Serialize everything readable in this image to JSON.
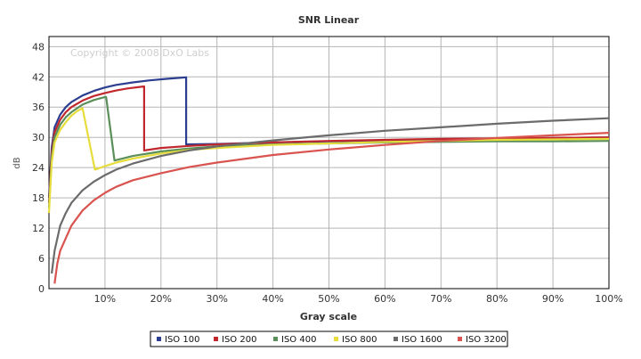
{
  "chart_data": {
    "type": "line",
    "title": "SNR Linear",
    "xlabel": "Gray scale",
    "ylabel": "dB",
    "watermark": "Copyright © 2008 DxO Labs",
    "xlim": [
      0,
      100
    ],
    "ylim": [
      0,
      50
    ],
    "yticks": [
      0,
      6,
      12,
      18,
      24,
      30,
      36,
      42,
      48
    ],
    "ytick_labels": [
      "0",
      "6",
      "12",
      "18",
      "24",
      "30",
      "36",
      "42",
      "48"
    ],
    "xticks": [
      10,
      20,
      30,
      40,
      50,
      60,
      70,
      80,
      90,
      100
    ],
    "xtick_labels": [
      "10%",
      "20%",
      "30%",
      "40%",
      "50%",
      "60%",
      "70%",
      "80%",
      "90%",
      "100%"
    ],
    "grid": true,
    "legend_position": "bottom",
    "series": [
      {
        "name": "ISO 100",
        "color": "#2c3e8f",
        "points": [
          [
            0,
            18
          ],
          [
            0.5,
            28
          ],
          [
            1,
            32
          ],
          [
            2,
            34.5
          ],
          [
            3,
            36
          ],
          [
            4,
            37
          ],
          [
            6,
            38.3
          ],
          [
            8,
            39.2
          ],
          [
            10,
            39.9
          ],
          [
            12,
            40.4
          ],
          [
            15,
            40.9
          ],
          [
            18,
            41.3
          ],
          [
            21,
            41.6
          ],
          [
            24.5,
            41.9
          ],
          [
            24.5,
            28.6
          ],
          [
            30,
            28.7
          ],
          [
            40,
            29
          ],
          [
            50,
            29.2
          ],
          [
            60,
            29.4
          ],
          [
            70,
            29.6
          ],
          [
            80,
            29.7
          ],
          [
            90,
            29.9
          ],
          [
            100,
            30
          ]
        ]
      },
      {
        "name": "ISO 200",
        "color": "#c0282d",
        "points": [
          [
            0,
            17
          ],
          [
            0.5,
            27
          ],
          [
            1,
            31
          ],
          [
            2,
            33.5
          ],
          [
            3,
            35
          ],
          [
            4,
            36
          ],
          [
            6,
            37.3
          ],
          [
            8,
            38.2
          ],
          [
            10,
            38.8
          ],
          [
            12,
            39.3
          ],
          [
            14,
            39.7
          ],
          [
            17,
            40.1
          ],
          [
            17,
            27.4
          ],
          [
            20,
            27.9
          ],
          [
            25,
            28.3
          ],
          [
            30,
            28.6
          ],
          [
            40,
            29
          ],
          [
            50,
            29.3
          ],
          [
            60,
            29.5
          ],
          [
            70,
            29.7
          ],
          [
            80,
            29.8
          ],
          [
            90,
            29.9
          ],
          [
            100,
            30
          ]
        ]
      },
      {
        "name": "ISO 400",
        "color": "#5a8f5a",
        "points": [
          [
            0,
            16
          ],
          [
            0.5,
            26
          ],
          [
            1,
            30
          ],
          [
            2,
            32.5
          ],
          [
            3,
            34
          ],
          [
            4,
            35
          ],
          [
            6,
            36.5
          ],
          [
            8,
            37.4
          ],
          [
            10,
            38
          ],
          [
            10.2,
            38
          ],
          [
            11.7,
            25.4
          ],
          [
            15,
            26.3
          ],
          [
            20,
            27.2
          ],
          [
            25,
            27.8
          ],
          [
            30,
            28.2
          ],
          [
            40,
            28.6
          ],
          [
            50,
            28.8
          ],
          [
            60,
            29
          ],
          [
            70,
            29.1
          ],
          [
            80,
            29.2
          ],
          [
            90,
            29.2
          ],
          [
            100,
            29.3
          ]
        ]
      },
      {
        "name": "ISO 800",
        "color": "#e6dd3c",
        "points": [
          [
            0,
            15
          ],
          [
            0.5,
            25
          ],
          [
            1,
            29
          ],
          [
            2,
            31.5
          ],
          [
            3,
            33
          ],
          [
            4,
            34.3
          ],
          [
            5,
            35.2
          ],
          [
            6,
            35.8
          ],
          [
            8.2,
            23.6
          ],
          [
            10,
            24.3
          ],
          [
            12,
            25
          ],
          [
            15,
            25.8
          ],
          [
            20,
            26.8
          ],
          [
            25,
            27.5
          ],
          [
            30,
            27.9
          ],
          [
            40,
            28.5
          ],
          [
            50,
            28.8
          ],
          [
            60,
            29.1
          ],
          [
            70,
            29.3
          ],
          [
            80,
            29.5
          ],
          [
            90,
            29.6
          ],
          [
            100,
            29.7
          ]
        ]
      },
      {
        "name": "ISO 1600",
        "color": "#6b6b6b",
        "points": [
          [
            0.5,
            3
          ],
          [
            1,
            7.5
          ],
          [
            2,
            12.5
          ],
          [
            3,
            15
          ],
          [
            4,
            17
          ],
          [
            6,
            19.5
          ],
          [
            8,
            21.2
          ],
          [
            10,
            22.5
          ],
          [
            12,
            23.6
          ],
          [
            15,
            24.8
          ],
          [
            20,
            26.3
          ],
          [
            25,
            27.4
          ],
          [
            30,
            28.2
          ],
          [
            40,
            29.4
          ],
          [
            50,
            30.4
          ],
          [
            60,
            31.3
          ],
          [
            70,
            32
          ],
          [
            80,
            32.7
          ],
          [
            90,
            33.3
          ],
          [
            100,
            33.8
          ]
        ]
      },
      {
        "name": "ISO 3200",
        "color": "#d9534f",
        "points": [
          [
            1,
            1
          ],
          [
            1.5,
            5
          ],
          [
            2,
            7.5
          ],
          [
            3,
            10
          ],
          [
            4,
            12.5
          ],
          [
            6,
            15.5
          ],
          [
            8,
            17.5
          ],
          [
            10,
            19
          ],
          [
            12,
            20.2
          ],
          [
            15,
            21.5
          ],
          [
            20,
            22.9
          ],
          [
            25,
            24.1
          ],
          [
            30,
            25
          ],
          [
            40,
            26.5
          ],
          [
            50,
            27.6
          ],
          [
            60,
            28.5
          ],
          [
            70,
            29.3
          ],
          [
            80,
            29.9
          ],
          [
            90,
            30.4
          ],
          [
            100,
            30.9
          ]
        ]
      }
    ]
  }
}
